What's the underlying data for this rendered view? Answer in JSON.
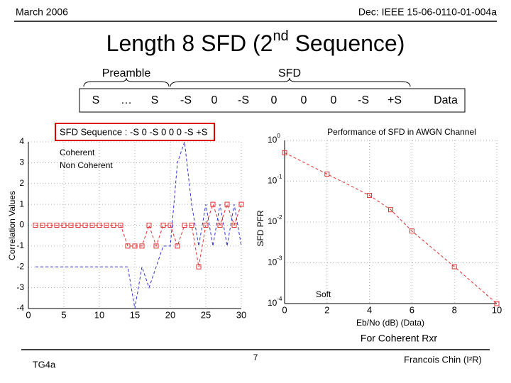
{
  "header": {
    "date": "March 2006",
    "doc": "Dec: IEEE 15-06-0110-01-004a"
  },
  "title": {
    "before": "Length 8 SFD (2",
    "sup": "nd",
    "after": " Sequence)"
  },
  "frame": {
    "preamble": "Preamble",
    "sfd": "SFD",
    "cells": [
      "S",
      "…",
      "S",
      "-S",
      "0",
      "-S",
      "0",
      "0",
      "0",
      "-S",
      "+S",
      "Data"
    ]
  },
  "callout": "SFD Sequence : -S 0 -S 0 0 0 -S +S",
  "chart_data": [
    {
      "type": "line",
      "ylabel": "Correlation Values",
      "x": [
        1,
        2,
        3,
        4,
        5,
        6,
        7,
        8,
        9,
        10,
        11,
        12,
        13,
        14,
        15,
        16,
        17,
        18,
        19,
        20,
        21,
        22,
        23,
        24,
        25,
        26,
        27,
        28,
        29,
        30
      ],
      "xlim": [
        0,
        30
      ],
      "xticks": [
        0,
        5,
        10,
        15,
        20,
        25,
        30
      ],
      "ylim": [
        -4,
        4
      ],
      "yticks": [
        -4,
        -3,
        -2,
        -1,
        0,
        1,
        2,
        3,
        4
      ],
      "grid": true,
      "series": [
        {
          "name": "Coherent",
          "color": "#e03030",
          "marker": "square",
          "values": [
            0,
            0,
            0,
            0,
            0,
            0,
            0,
            0,
            0,
            0,
            0,
            0,
            0,
            -1,
            -1,
            -1,
            0,
            -1,
            0,
            0,
            -1,
            0,
            0,
            -2,
            0,
            1,
            0,
            1,
            0,
            1
          ]
        },
        {
          "name": "Non Coherent",
          "color": "#3030d0",
          "marker": "none",
          "values": [
            -2,
            -2,
            -2,
            -2,
            -2,
            -2,
            -2,
            -2,
            -2,
            -2,
            -2,
            -2,
            -2,
            -2,
            -4,
            -2,
            -3,
            -2,
            -1,
            -1,
            3,
            4,
            1,
            -1,
            1,
            -1,
            1,
            -1,
            1,
            -1
          ]
        }
      ]
    },
    {
      "type": "line",
      "title": "Performance of SFD in AWGN Channel",
      "ylabel": "SFD PFR",
      "xlabel": "Eb/No (dB) (Data)",
      "note": "For Coherent Rxr",
      "ylog": true,
      "x": [
        0,
        2,
        4,
        5,
        6,
        8,
        10
      ],
      "xlim": [
        0,
        10
      ],
      "xticks": [
        0,
        2,
        4,
        6,
        8,
        10
      ],
      "ylim": [
        0.0001,
        1
      ],
      "yticks": [
        {
          "value": 1,
          "label": "10",
          "sup": "0"
        },
        {
          "value": 0.1,
          "label": "10",
          "sup": "-1"
        },
        {
          "value": 0.01,
          "label": "10",
          "sup": "-2"
        },
        {
          "value": 0.001,
          "label": "10",
          "sup": "-3"
        },
        {
          "value": 0.0001,
          "label": "10",
          "sup": "-4"
        }
      ],
      "grid": true,
      "series": [
        {
          "name": "Soft",
          "color": "#e03030",
          "marker": "square",
          "values": [
            0.5,
            0.15,
            0.045,
            0.02,
            0.006,
            0.0008,
            0.0001
          ]
        }
      ]
    }
  ],
  "footer": {
    "left": "TG4a",
    "page": "7",
    "right": "Francois Chin (I²R)"
  }
}
